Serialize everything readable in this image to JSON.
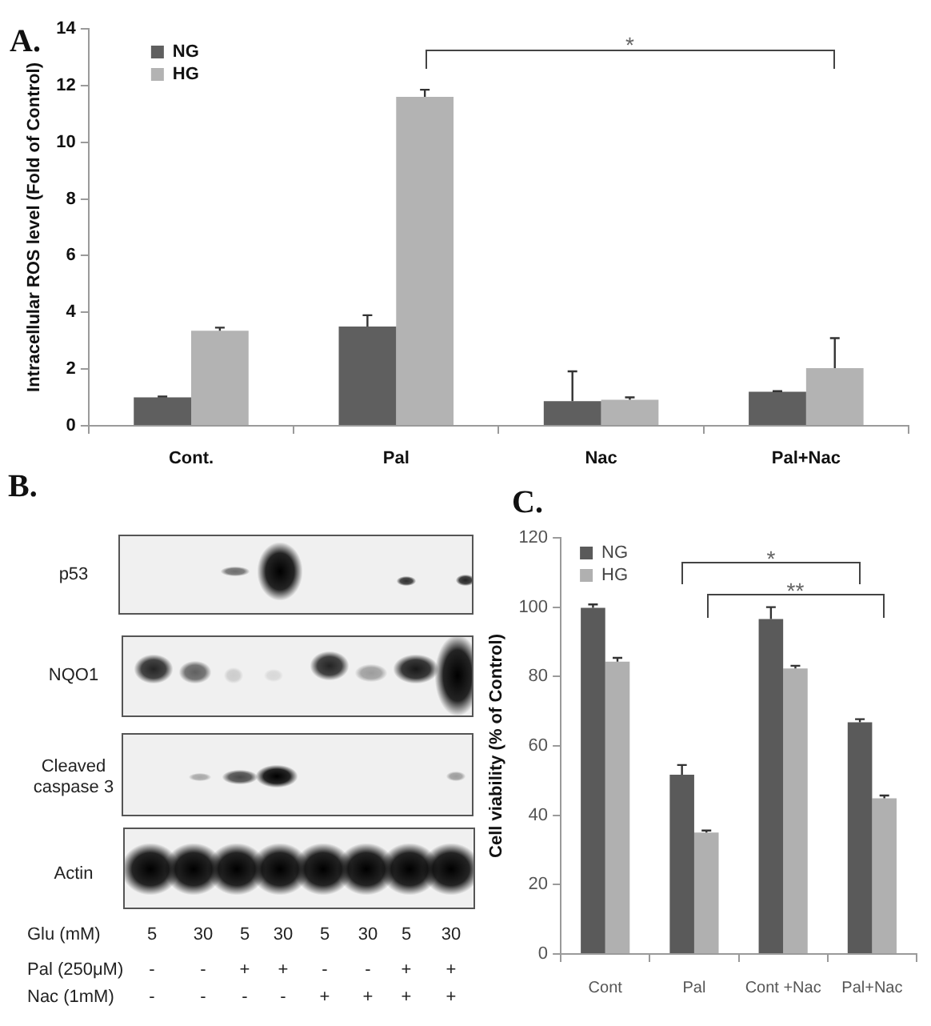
{
  "chart_data": [
    {
      "type": "bar",
      "title": "A.",
      "ylabel": "Intracellular ROS level (Fold of Control)",
      "categories": [
        "Cont.",
        "Pal",
        "Nac",
        "Pal+Nac"
      ],
      "series": [
        {
          "name": "NG",
          "color": "#5f5f5f",
          "values": [
            1.0,
            3.5,
            0.87,
            1.2
          ],
          "errors": [
            [
              1.0,
              1.03
            ],
            [
              3.5,
              3.9
            ],
            [
              0.87,
              1.92
            ],
            [
              1.2,
              1.22
            ]
          ]
        },
        {
          "name": "HG",
          "color": "#b3b3b3",
          "values": [
            3.35,
            11.6,
            0.92,
            2.03
          ],
          "errors": [
            [
              3.35,
              3.46
            ],
            [
              11.6,
              11.85
            ],
            [
              0.92,
              1.0
            ],
            [
              2.03,
              3.09
            ]
          ]
        }
      ],
      "ylim": [
        0,
        14
      ],
      "yticks": [
        0,
        2,
        4,
        6,
        8,
        10,
        12,
        14
      ],
      "grid": false,
      "legend": "top left",
      "annotations": [
        "*"
      ]
    },
    {
      "type": "other",
      "title": "B.",
      "annotations": [
        "p53",
        "NQO1",
        "Cleaved caspase 3",
        "Actin",
        "Glu (mM)",
        "5",
        "30",
        "5",
        "30",
        "5",
        "30",
        "5",
        "30",
        "Pal (250μM)",
        "-",
        "-",
        "+",
        "+",
        "-",
        "-",
        "+",
        "+",
        "Nac (1mM)",
        "-",
        "-",
        "-",
        "-",
        "+",
        "+",
        "+",
        "+"
      ]
    },
    {
      "type": "bar",
      "title": "C.",
      "ylabel": "Cell viability (% of Control)",
      "categories": [
        "Cont",
        "Pal",
        "Cont +Nac",
        "Pal+Nac"
      ],
      "series": [
        {
          "name": "NG",
          "color": "#5a5a5a",
          "values": [
            99.8,
            51.7,
            96.6,
            66.8
          ],
          "errors": [
            [
              99.8,
              100.8
            ],
            [
              51.7,
              54.5
            ],
            [
              96.6,
              100
            ],
            [
              66.8,
              67.7
            ]
          ]
        },
        {
          "name": "HG",
          "color": "#b0b0b0",
          "values": [
            84.3,
            35,
            82.3,
            44.9
          ],
          "errors": [
            [
              84.3,
              85.4
            ],
            [
              35,
              35.6
            ],
            [
              82.3,
              83.1
            ],
            [
              44.9,
              45.7
            ]
          ]
        }
      ],
      "ylim": [
        0,
        120
      ],
      "yticks": [
        0,
        20,
        40,
        60,
        80,
        100,
        120
      ],
      "grid": false,
      "legend": "top left",
      "annotations": [
        "*",
        "**"
      ]
    }
  ]
}
